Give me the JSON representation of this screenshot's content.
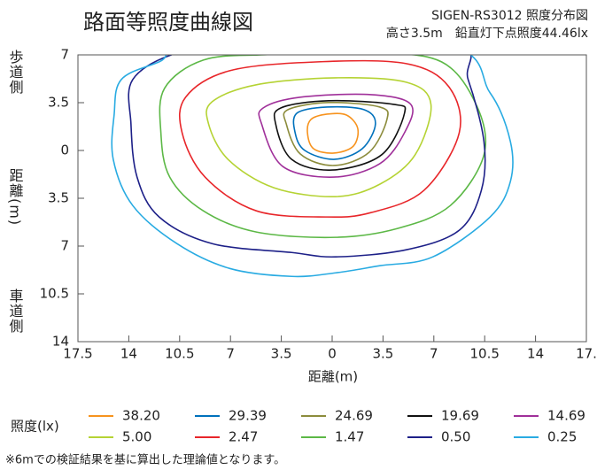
{
  "chart_data": {
    "type": "contour",
    "title": "路面等照度曲線図",
    "subtitle": [
      "SIGEN-RS3012 照度分布図",
      "高さ3.5m　鉛直灯下点照度44.46lx"
    ],
    "y_label_top": "歩道側",
    "y_label": "距離(m)",
    "y_label_bottom": "車道側",
    "x_label": "距離(m)",
    "legend_title": "照度(lx)",
    "footnote": "※6mでの検証結果を基に算出した理論値となります。",
    "xlim": [
      -17.5,
      17.5
    ],
    "xticks": [
      {
        "value": -17.5,
        "label": "17.5"
      },
      {
        "value": -14,
        "label": "14"
      },
      {
        "value": -10.5,
        "label": "10.5"
      },
      {
        "value": -7,
        "label": "7"
      },
      {
        "value": -3.5,
        "label": "3.5"
      },
      0,
      3.5,
      7,
      10.5,
      14,
      {
        "value": 17.5,
        "label": "17."
      }
    ],
    "ylim": [
      -14,
      7
    ],
    "yticks": [
      7,
      3.5,
      0,
      {
        "value": -3.5,
        "label": "3.5"
      },
      {
        "value": -7,
        "label": "7"
      },
      {
        "value": -10.5,
        "label": "10.5"
      },
      {
        "value": -14,
        "label": "14"
      }
    ],
    "series": [
      {
        "name": "38.20",
        "color": "#f7931e",
        "x": [
          -1.7,
          -1.46,
          -0.36,
          0.97,
          1.76,
          1.46,
          0.12,
          -1.28
        ],
        "y": [
          1.3,
          2.27,
          2.66,
          2.6,
          1.62,
          0.32,
          -0.19,
          0.13
        ]
      },
      {
        "name": "29.39",
        "color": "#0071bc",
        "x": [
          -2.55,
          -2.43,
          -0.36,
          2.19,
          2.98,
          2.07,
          0.12,
          -1.88
        ],
        "y": [
          1.3,
          2.73,
          3.18,
          2.99,
          1.95,
          0.13,
          -0.65,
          0
        ]
      },
      {
        "name": "24.69",
        "color": "#8c8c3c",
        "x": [
          -3.16,
          -3.04,
          -0.24,
          3.28,
          3.77,
          2.55,
          0.12,
          -2.19
        ],
        "y": [
          1.95,
          2.99,
          3.51,
          3.18,
          2.27,
          -0.13,
          -1.1,
          -0.26
        ]
      },
      {
        "name": "19.69",
        "color": "#111111",
        "x": [
          -3.89,
          -3.52,
          -0.24,
          4.19,
          4.98,
          3.4,
          0,
          -2.79
        ],
        "y": [
          1.95,
          3.12,
          3.64,
          3.38,
          2.73,
          -0.32,
          -1.43,
          -0.65
        ]
      },
      {
        "name": "14.69",
        "color": "#a0309a",
        "x": [
          -4.86,
          -4.74,
          -2.19,
          2.67,
          5.41,
          4.98,
          3.28,
          0.12,
          -3.4
        ],
        "y": [
          1.95,
          3.12,
          3.9,
          4.09,
          3.38,
          1.3,
          -0.97,
          -1.95,
          -1.17
        ]
      },
      {
        "name": "5.00",
        "color": "#b5d334",
        "x": [
          -8.51,
          -8.26,
          -5.22,
          0.24,
          5.1,
          6.8,
          5.71,
          3.28,
          0.24,
          -4.01,
          -7.17
        ],
        "y": [
          1.95,
          3.57,
          4.81,
          5.32,
          5,
          3.38,
          -0.32,
          -2.47,
          -3.38,
          -2.73,
          -0.65
        ]
      },
      {
        "name": "2.47",
        "color": "#e8262a",
        "x": [
          -10.33,
          -10.09,
          -7.05,
          -0.97,
          5.1,
          8.02,
          8.75,
          6.32,
          2.67,
          -0.36,
          -5.22,
          -8.75
        ],
        "y": [
          1.3,
          3.9,
          5.84,
          6.49,
          6.36,
          4.68,
          1.3,
          -2.92,
          -4.55,
          -4.87,
          -4.42,
          -1.95
        ]
      },
      {
        "name": "1.47",
        "color": "#5cb846",
        "x": [
          -11.79,
          -11.54,
          -8.87,
          -4.62,
          2.67,
          7.53,
          9.96,
          10.45,
          8.14,
          4.5,
          0.24,
          -5.22,
          -8.87,
          -11.18
        ],
        "y": [
          1.3,
          4.55,
          6.62,
          7.01,
          7.14,
          6.49,
          3.25,
          -0.32,
          -4.03,
          -5.71,
          -6.36,
          -5.97,
          -4.42,
          -1.95
        ]
      },
      {
        "name": "0.50",
        "color": "#1d2088",
        "x": [
          -13.85,
          -13.73,
          -10.69,
          -5.83,
          8.14,
          9.36,
          10.45,
          10.27,
          8.75,
          5.1,
          0.24,
          -2.79,
          -8.26,
          -11.91,
          -13.43
        ],
        "y": [
          1.95,
          5.19,
          7.14,
          7.92,
          7.79,
          5.19,
          0.65,
          -2.92,
          -5.84,
          -7.27,
          -7.79,
          -7.47,
          -6.82,
          -4.87,
          -1.95
        ]
      },
      {
        "name": "0.25",
        "color": "#29abe2",
        "x": [
          -15.01,
          -14.52,
          -11.91,
          -8.87,
          7.53,
          10.87,
          12.27,
          12.27,
          10.87,
          6.93,
          3.28,
          0.24,
          -2.79,
          -7.05,
          -10.69,
          -13.73,
          -15.07
        ],
        "y": [
          2.6,
          5.19,
          6.49,
          7.79,
          7.79,
          4.22,
          0.65,
          -2.27,
          -4.87,
          -7.79,
          -8.44,
          -8.96,
          -9.22,
          -8.64,
          -6.82,
          -4.03,
          -0.65
        ]
      }
    ]
  }
}
